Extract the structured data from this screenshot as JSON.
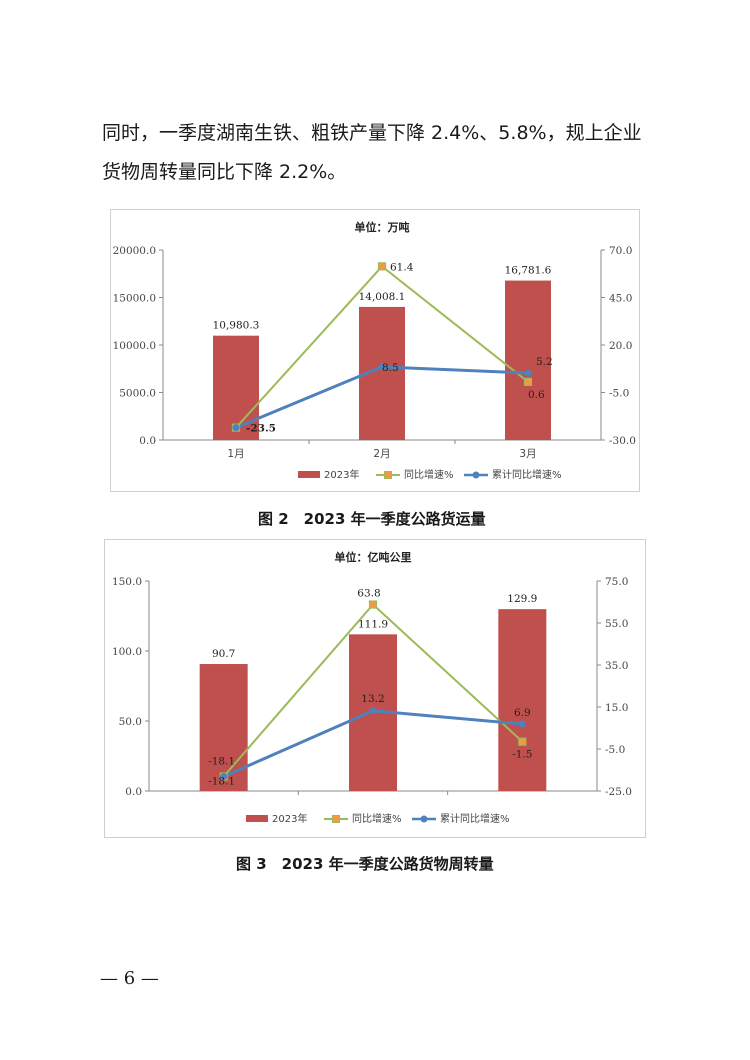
{
  "paragraph": {
    "line1": "同时，一季度湖南生铁、粗铁产量下降 2.4%、5.8%，规上企业",
    "line2": "货物周转量同比下降 2.2%。"
  },
  "figure2": {
    "caption": "图 2　2023 年一季度公路货运量"
  },
  "figure3": {
    "caption": "图 3　2023 年一季度公路货物周转量"
  },
  "page_number": "— 6 —",
  "colors": {
    "bar": "#c0504d",
    "yoy_line": "#9bbb59",
    "cum_line": "#4f81bd",
    "yoy_marker_fill": "#f79646"
  },
  "chart_data": [
    {
      "type": "bar",
      "title": "单位：万吨",
      "categories": [
        "1月",
        "2月",
        "3月"
      ],
      "series": [
        {
          "name": "2023年",
          "type": "bar",
          "axis": "left",
          "values": [
            10980.3,
            14008.1,
            16781.6
          ],
          "labels": [
            "10,980.3",
            "14,008.1",
            "16,781.6"
          ]
        },
        {
          "name": "同比增速%",
          "type": "line",
          "axis": "right",
          "values": [
            -23.5,
            61.4,
            0.6
          ],
          "labels": [
            "",
            "61.4",
            "0.6"
          ]
        },
        {
          "name": "累计同比增速%",
          "type": "line",
          "axis": "right",
          "values": [
            -23.5,
            8.5,
            5.2
          ],
          "labels": [
            "-23.5",
            "8.5",
            "5.2"
          ]
        }
      ],
      "yticks_left": [
        "0.0",
        "5000.0",
        "10000.0",
        "15000.0",
        "20000.0"
      ],
      "yticks_right": [
        "-30.0",
        "-5.0",
        "20.0",
        "45.0",
        "70.0"
      ],
      "ylim": [
        0,
        20000
      ],
      "ylim_right": [
        -30,
        70
      ],
      "legend": "bottom",
      "grid": false
    },
    {
      "type": "bar",
      "title": "单位：亿吨公里",
      "categories": [
        "",
        "",
        ""
      ],
      "series": [
        {
          "name": "2023年",
          "type": "bar",
          "axis": "left",
          "values": [
            90.7,
            111.9,
            129.9
          ],
          "labels": [
            "90.7",
            "111.9",
            "129.9"
          ]
        },
        {
          "name": "同比增速%",
          "type": "line",
          "axis": "right",
          "values": [
            -18.1,
            63.8,
            -1.5
          ],
          "labels": [
            "-18.1",
            "63.8",
            "-1.5"
          ]
        },
        {
          "name": "累计同比增速%",
          "type": "line",
          "axis": "right",
          "values": [
            -18.1,
            13.2,
            6.9
          ],
          "labels": [
            "-18.1",
            "13.2",
            "6.9"
          ]
        }
      ],
      "yticks_left": [
        "0.0",
        "50.0",
        "100.0",
        "150.0"
      ],
      "yticks_right": [
        "-25.0",
        "-5.0",
        "15.0",
        "35.0",
        "55.0",
        "75.0"
      ],
      "ylim": [
        0,
        150
      ],
      "ylim_right": [
        -25,
        75
      ],
      "legend": "bottom",
      "grid": false
    }
  ]
}
